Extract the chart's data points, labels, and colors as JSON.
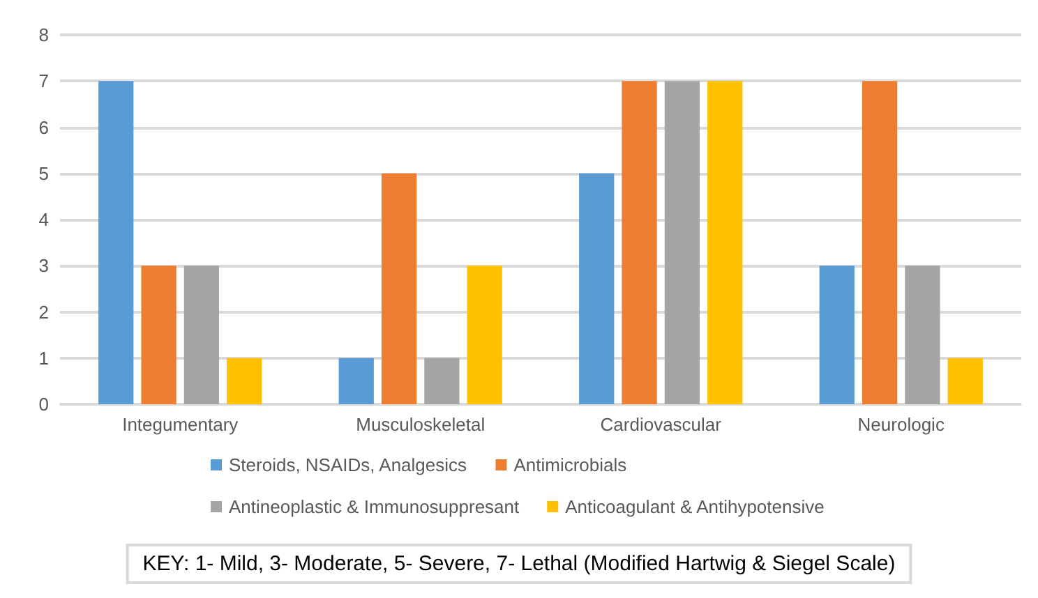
{
  "chart_data": {
    "type": "bar",
    "categories": [
      "Integumentary",
      "Musculoskeletal",
      "Cardiovascular",
      "Neurologic"
    ],
    "series": [
      {
        "name": "Steroids, NSAIDs, Analgesics",
        "color": "#5b9bd5",
        "values": [
          7,
          1,
          5,
          3
        ]
      },
      {
        "name": "Antimicrobials",
        "color": "#ed7d31",
        "values": [
          3,
          5,
          7,
          7
        ]
      },
      {
        "name": "Antineoplastic & Immunosuppresant",
        "color": "#a5a5a5",
        "values": [
          3,
          1,
          7,
          3
        ]
      },
      {
        "name": "Anticoagulant & Antihypotensive",
        "color": "#ffc000",
        "values": [
          1,
          3,
          7,
          1
        ]
      }
    ],
    "ylim": [
      0,
      8
    ],
    "yticks": [
      0,
      1,
      2,
      3,
      4,
      5,
      6,
      7,
      8
    ],
    "grid": "y",
    "legend": "bottom",
    "annotations": [
      "KEY: 1- Mild, 3- Moderate, 5- Severe, 7- Lethal (Modified Hartwig & Siegel Scale)"
    ]
  }
}
